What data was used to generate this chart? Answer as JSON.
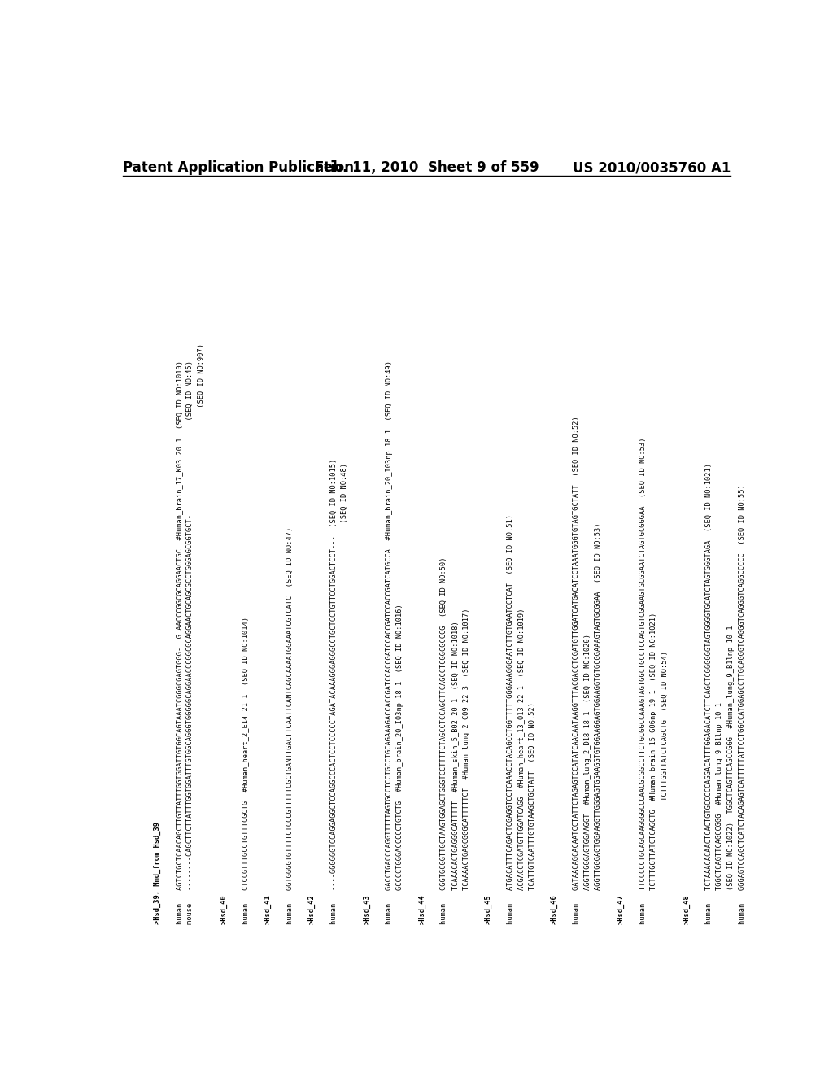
{
  "bg_color": "#ffffff",
  "header_left": "Patent Application Publication",
  "header_center": "Feb. 11, 2010  Sheet 9 of 559",
  "header_right": "US 2010/0035760 A1",
  "font_size_header": 12,
  "font_size_content": 6.2,
  "content_lines": [
    ">Hsd_39, Mmd_from Hsd_39",
    "",
    "human   AGTCTGCTCAACAGCTTGTTATTTGGTGGATTGTGGCAGTAAATCGGGCGAGTGGG-  G AACCCGGCGCAGGAACTGC  #Human_brain_17_K03 20 1  (SEQ ID NO:1010)",
    "mouse   --------CAGCTTCTTATTTGGTGGATTTGTGGCAGGGTGGGGGCAGGAACCCGGCGCAGGAACTGCAGCGCCTGGGAGCGGTGCT-                      (SEQ ID NO:45)",
    "                                                                                                                         (SEQ ID NO:907)",
    "",
    ">Hsd_40",
    "",
    "human   CTCCGTTTGCCTGTTTCGCTG  #Human_heart_2_E14 21 1  (SEQ ID NO:1014)",
    "",
    ">Hsd_41",
    "",
    "human   GGTGGGGTGTTTTCTCCCGTTTTTCGCTGANTTGACTTCAATTCANTCAGCAAAATGGAAATCGTCATC  (SEQ ID NO:47)",
    "",
    ">Hsd_42",
    "",
    "human   ----GGGGGGTCCAGGAGGCTCCAGGCCCACTCCTCCCCCTAGATACAAAGGGAGGGCCTGCTCCTGTTCCTGGACTCCT---  (SEQ ID NO:1015)",
    "                                                                                              (SEQ ID NO:48)",
    "",
    ">Hsd_43",
    "",
    "human   GACCTGACCCAGGTTTTTAGTGCCTCCTGCCTGCAGAAAGACCACCGATCCACCGATCCACCGATCCACCGATCATGCCA  #Human_brain_20_I03np 18 1  (SEQ ID NO:49)",
    "        GCCCCTGGGACCCCCTGTCTG  #Human_brain_20_I03np 18 1  (SEQ ID NO:1016)",
    "",
    ">Hsd_44",
    "",
    "human   CGGTGCGGTTGCTAAGTGGAGCTGGGTCCTTTTCTAGCCTCCAGCTTCAGCCTCGGCGCCCG  (SEQ ID NO:50)",
    "        TCAAACACTGAGGGCATTTTT  #Human_skin_5_B02 20 1  (SEQ ID NO:1018)",
    "        TCAAAACTGAGCGGGCATTTTTCT  #Human_lung_2_C09 22 3  (SEQ ID NO:1017)",
    "",
    ">Hsd_45",
    "",
    "human   ATGACATTTCAGACTCGAGGTCCTCAAACCTACAGCCTGGTTTTTGGGAAAGGGAATCTTGTGAATCCTCAT  (SEQ ID NO:51)",
    "        ACGACCTCGATGTTGGATCAGG  #Human_heart_13_O13 22 1  (SEQ ID NO:1019)",
    "        TCATTGTCAATTTGTGTAAGCTGCTATT  (SEQ ID NO:52)",
    "",
    ">Hsd_46",
    "",
    "human   GATAACAGCACAATCCTATTCTAGAGTCCATATCAACAATAAGGTTTACGACCTCGATGTTGGATCATGACATCCTAAATGGGTGTAGTGCTATT  (SEQ ID NO:52)",
    "        AGGTTGGGAGTGGAAGGT  #Human_lung_2_D18 18 1  (SEQ ID NO:1020)",
    "        AGGTTGGGAGTGGAAGGTTGGGAGTGGAAGGTGTGGAAGGAGTGGAAGGTGTGCGGAAAGTAGTGCGGAA  (SEQ ID NO:53)",
    "",
    ">Hsd_47",
    "",
    "human   TTCCCCCTGCAGCAAGGGGCCCAACGCGGCCTTCTGCGGCCAAAGTAGTGGCTGCCTCCAGTGTCGGAAGTGCGGAATCTAGTGCGGGAA  (SEQ ID NO:53)",
    "        TCTTTGGTTATCTCAGCTG  #Human_brain_15_G06np 19 1  (SEQ ID NO:1021)",
    "                             TCTTTGGTTATCTCAGCTG  (SEQ ID NO:54)",
    "",
    ">Hsd_48",
    "",
    "human   TCTAAACACAACTCACTGTGCCCCCAGGACATTTGGAGACATCTTCAGCTCGGGGGGTAGTGGGGTGCATCTAGTGGGTAGA  (SEQ ID NO:1021)",
    "        TGGCTCAGTTCAGCCGGG  #Human_lung_9_B1lnp 10 1",
    "        (SEQ ID NO:1022)  TGGCTCAGTTCAGCCGGG  #Human_lung_9_B1lnp 10 1",
    "human   GGGAGTCCAGCTCATCTACAGAGTCATTTTTATTCCTGGCCATGGAGCCTTGCAGGGTCAGGGTCAGGGTCAGGCCCCC  (SEQ ID NO:55)"
  ]
}
